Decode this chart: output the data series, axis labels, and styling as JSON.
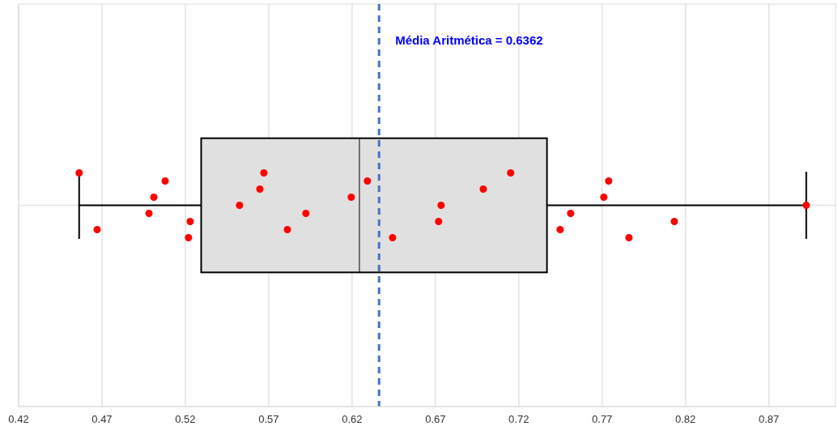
{
  "chart_data": {
    "type": "box",
    "orientation": "horizontal",
    "categories": [
      null
    ],
    "xlim": [
      0.42,
      0.91
    ],
    "xticks": [
      0.42,
      0.47,
      0.52,
      0.57,
      0.62,
      0.67,
      0.72,
      0.77,
      0.82,
      0.87
    ],
    "grid": true,
    "series": [
      {
        "color": "#e0e0e0",
        "boxes": [
          {
            "low": 0.4563,
            "q1": 0.5295,
            "median": 0.6244,
            "q3": 0.7369,
            "high": 0.8924
          }
        ]
      },
      {
        "type": "scatter",
        "color": "#ff0000",
        "marker": "circle",
        "x": [
          null,
          null,
          null,
          null,
          null,
          null,
          null,
          null,
          null,
          null,
          null,
          null,
          null,
          null,
          null,
          null,
          null,
          null,
          null,
          null,
          null,
          null,
          null,
          null,
          null,
          null
        ],
        "values": [
          0.4563,
          0.4671,
          0.4982,
          0.5011,
          0.5079,
          0.5219,
          0.5229,
          0.5525,
          0.5647,
          0.5671,
          0.5812,
          0.5923,
          0.6195,
          0.6292,
          0.6443,
          0.6719,
          0.6734,
          0.6987,
          0.7151,
          0.7448,
          0.7511,
          0.771,
          0.7739,
          0.7861,
          0.8133,
          0.8924
        ]
      }
    ],
    "ref_lines": [
      {
        "axis": "x",
        "value": 0.6362,
        "label": "Média Aritmética = 0.6362",
        "color": "#4472c4",
        "line_style": "dashed"
      }
    ]
  }
}
